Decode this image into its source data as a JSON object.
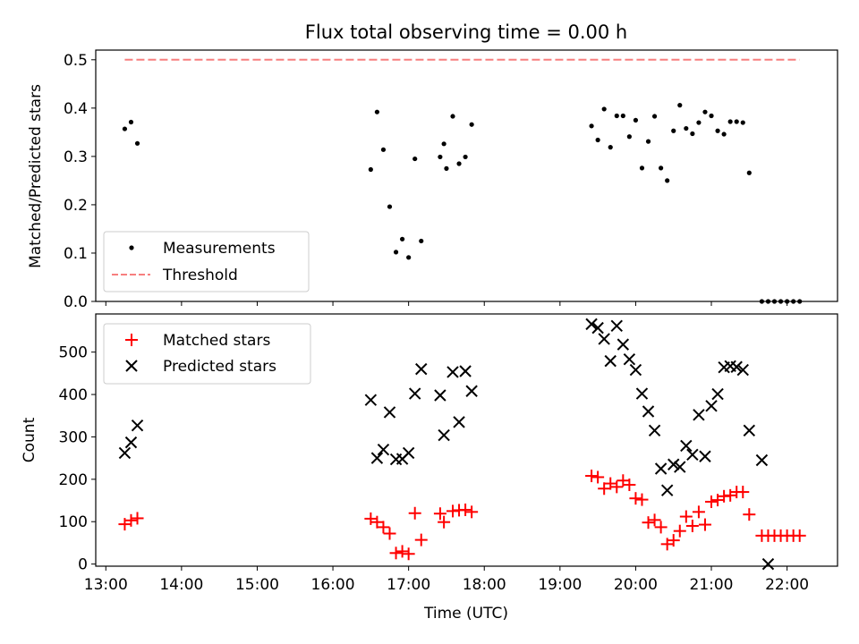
{
  "chart_data": [
    {
      "type": "scatter",
      "title": "Flux total observing time = 0.00 h",
      "xlabel": "",
      "ylabel": "Matched/Predicted stars",
      "xlim": [
        "12:52",
        "22:40"
      ],
      "ylim": [
        0,
        0.52
      ],
      "yticks": [
        0.0,
        0.1,
        0.2,
        0.3,
        0.4,
        0.5
      ],
      "ytick_labels": [
        "0.0",
        "0.1",
        "0.2",
        "0.3",
        "0.4",
        "0.5"
      ],
      "grid": false,
      "legend": "lower-left",
      "series": [
        {
          "name": "Measurements",
          "marker": "dot",
          "color": "#000000",
          "x": [
            "13:15",
            "13:20",
            "13:25",
            "16:30",
            "16:35",
            "16:40",
            "16:45",
            "16:50",
            "16:55",
            "17:00",
            "17:05",
            "17:10",
            "17:25",
            "17:28",
            "17:30",
            "17:35",
            "17:40",
            "17:45",
            "17:50",
            "19:25",
            "19:30",
            "19:35",
            "19:40",
            "19:45",
            "19:50",
            "19:55",
            "20:00",
            "20:05",
            "20:10",
            "20:15",
            "20:20",
            "20:25",
            "20:30",
            "20:35",
            "20:40",
            "20:45",
            "20:50",
            "20:55",
            "21:00",
            "21:05",
            "21:10",
            "21:15",
            "21:20",
            "21:25",
            "21:30",
            "21:40",
            "21:45",
            "21:50",
            "21:55",
            "22:00",
            "22:05",
            "22:10"
          ],
          "y": [
            0.357,
            0.371,
            0.327,
            0.273,
            0.392,
            0.314,
            0.196,
            0.102,
            0.129,
            0.091,
            0.295,
            0.125,
            0.299,
            0.326,
            0.275,
            0.383,
            0.285,
            0.299,
            0.366,
            0.363,
            0.334,
            0.398,
            0.319,
            0.384,
            0.384,
            0.341,
            0.375,
            0.276,
            0.331,
            0.383,
            0.276,
            0.25,
            0.353,
            0.406,
            0.358,
            0.347,
            0.37,
            0.392,
            0.384,
            0.353,
            0.346,
            0.372,
            0.372,
            0.37,
            0.266,
            0.0,
            0.0,
            0.0,
            0.0,
            0.0,
            0.0,
            0.0
          ]
        },
        {
          "name": "Threshold",
          "style": "dashed-line",
          "color": "#f77f7f",
          "x": [
            "13:15",
            "22:10"
          ],
          "y": [
            0.5,
            0.5
          ]
        }
      ]
    },
    {
      "type": "scatter",
      "title": "",
      "xlabel": "Time (UTC)",
      "ylabel": "Count",
      "xlim": [
        "12:52",
        "22:40"
      ],
      "ylim": [
        -5,
        590
      ],
      "yticks": [
        0,
        100,
        200,
        300,
        400,
        500
      ],
      "ytick_labels": [
        "0",
        "100",
        "200",
        "300",
        "400",
        "500"
      ],
      "xticks": [
        "13:00",
        "14:00",
        "15:00",
        "16:00",
        "17:00",
        "18:00",
        "19:00",
        "20:00",
        "21:00",
        "22:00"
      ],
      "xtick_labels": [
        "13:00",
        "14:00",
        "15:00",
        "16:00",
        "17:00",
        "18:00",
        "19:00",
        "20:00",
        "21:00",
        "22:00"
      ],
      "grid": false,
      "legend": "upper-left",
      "series": [
        {
          "name": "Matched stars",
          "marker": "plus",
          "color": "#ff0000",
          "x": [
            "13:15",
            "13:20",
            "13:25",
            "16:30",
            "16:35",
            "16:40",
            "16:45",
            "16:50",
            "16:55",
            "17:00",
            "17:05",
            "17:10",
            "17:25",
            "17:28",
            "17:35",
            "17:40",
            "17:45",
            "17:50",
            "19:25",
            "19:30",
            "19:35",
            "19:40",
            "19:45",
            "19:50",
            "19:55",
            "20:00",
            "20:05",
            "20:10",
            "20:15",
            "20:20",
            "20:25",
            "20:30",
            "20:35",
            "20:40",
            "20:45",
            "20:50",
            "20:55",
            "21:00",
            "21:05",
            "21:10",
            "21:15",
            "21:20",
            "21:25",
            "21:30",
            "21:40",
            "21:45",
            "21:50",
            "21:55",
            "22:00",
            "22:05",
            "22:10"
          ],
          "y": [
            94,
            103,
            108,
            107,
            99,
            87,
            72,
            26,
            30,
            24,
            120,
            57,
            119,
            99,
            125,
            127,
            128,
            123,
            208,
            205,
            178,
            190,
            182,
            197,
            187,
            155,
            152,
            98,
            104,
            87,
            47,
            56,
            78,
            112,
            90,
            123,
            93,
            147,
            151,
            160,
            162,
            170,
            170,
            117,
            67,
            67,
            67,
            67,
            67,
            67,
            67
          ]
        },
        {
          "name": "Predicted stars",
          "marker": "x",
          "color": "#000000",
          "x": [
            "13:15",
            "13:20",
            "13:25",
            "16:30",
            "16:35",
            "16:40",
            "16:45",
            "16:50",
            "16:55",
            "17:00",
            "17:05",
            "17:10",
            "17:25",
            "17:28",
            "17:35",
            "17:40",
            "17:45",
            "17:50",
            "19:25",
            "19:30",
            "19:35",
            "19:40",
            "19:45",
            "19:50",
            "19:55",
            "20:00",
            "20:05",
            "20:10",
            "20:15",
            "20:20",
            "20:25",
            "20:30",
            "20:35",
            "20:40",
            "20:45",
            "20:50",
            "20:55",
            "21:00",
            "21:05",
            "21:10",
            "21:15",
            "21:20",
            "21:25",
            "21:30",
            "21:40",
            "21:45"
          ],
          "y": [
            262,
            287,
            327,
            387,
            250,
            270,
            358,
            247,
            248,
            262,
            402,
            460,
            398,
            304,
            453,
            335,
            455,
            408,
            566,
            557,
            531,
            479,
            562,
            518,
            483,
            458,
            402,
            360,
            315,
            225,
            174,
            235,
            229,
            279,
            258,
            352,
            254,
            373,
            401,
            464,
            467,
            465,
            458,
            315,
            245,
            0
          ]
        }
      ]
    }
  ]
}
